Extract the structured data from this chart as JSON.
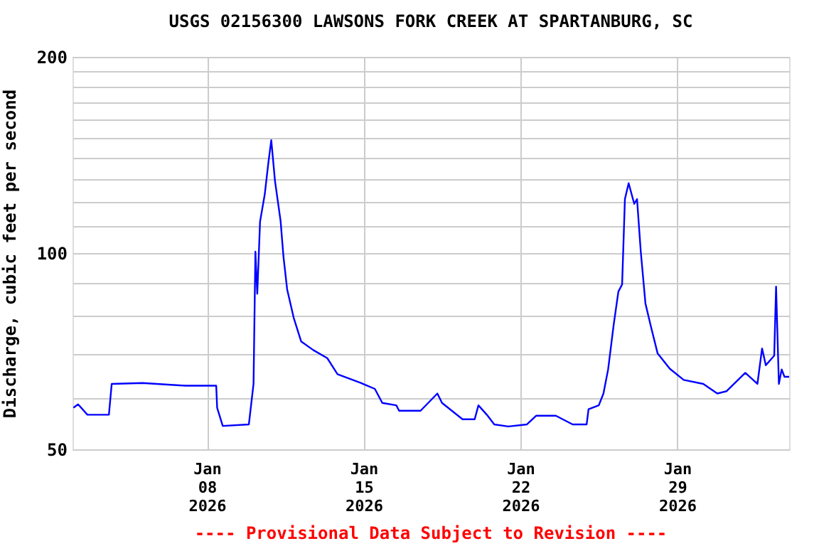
{
  "chart_data": {
    "type": "line",
    "title": "USGS 02156300 LAWSONS FORK CREEK AT SPARTANBURG, SC",
    "ylabel": "Discharge, cubic feet per second",
    "annotations": [
      "---- Provisional Data Subject to Revision ----"
    ],
    "x": [
      "2026-01-02T01:00",
      "2026-01-02T06:00",
      "2026-01-02T16:00",
      "2026-01-03T15:00",
      "2026-01-03T18:00",
      "2026-01-05T03:00",
      "2026-01-07T01:00",
      "2026-01-08T10:00",
      "2026-01-08T11:00",
      "2026-01-08T17:00",
      "2026-01-09T21:00",
      "2026-01-10T02:00",
      "2026-01-10T04:00",
      "2026-01-10T06:00",
      "2026-01-10T09:00",
      "2026-01-10T14:00",
      "2026-01-10T18:00",
      "2026-01-10T21:00",
      "2026-01-11T01:00",
      "2026-01-11T07:00",
      "2026-01-11T10:00",
      "2026-01-11T14:00",
      "2026-01-11T21:00",
      "2026-01-12T05:00",
      "2026-01-12T18:00",
      "2026-01-13T09:00",
      "2026-01-13T20:00",
      "2026-01-14T21:00",
      "2026-01-15T12:00",
      "2026-01-15T20:00",
      "2026-01-16T11:00",
      "2026-01-16T14:00",
      "2026-01-17T13:00",
      "2026-01-18T07:00",
      "2026-01-18T12:00",
      "2026-01-19T10:00",
      "2026-01-19T23:00",
      "2026-01-20T03:00",
      "2026-01-20T12:00",
      "2026-01-20T20:00",
      "2026-01-21T11:00",
      "2026-01-22T07:00",
      "2026-01-22T17:00",
      "2026-01-23T14:00",
      "2026-01-24T08:00",
      "2026-01-24T23:00",
      "2026-01-25T01:00",
      "2026-01-25T12:00",
      "2026-01-25T17:00",
      "2026-01-25T22:00",
      "2026-01-26T04:00",
      "2026-01-26T09:00",
      "2026-01-26T13:00",
      "2026-01-26T16:00",
      "2026-01-26T20:00",
      "2026-01-27T02:00",
      "2026-01-27T05:00",
      "2026-01-27T09:00",
      "2026-01-27T14:00",
      "2026-01-27T20:00",
      "2026-01-28T03:00",
      "2026-01-28T16:00",
      "2026-01-29T07:00",
      "2026-01-30T04:00",
      "2026-01-30T19:00",
      "2026-01-31T05:00",
      "2026-02-01T01:00",
      "2026-02-01T14:00",
      "2026-02-01T19:00",
      "2026-02-01T23:00",
      "2026-02-02T08:00",
      "2026-02-02T10:00",
      "2026-02-02T13:00",
      "2026-02-02T16:00",
      "2026-02-02T19:00",
      "2026-02-03T00:00"
    ],
    "series": [
      {
        "color": "#0000ff",
        "values": [
          57.9,
          58.6,
          56.5,
          56.5,
          63.0,
          63.2,
          62.6,
          62.6,
          57.9,
          54.3,
          54.6,
          63,
          100.5,
          86.6,
          111.8,
          123,
          138,
          149,
          129,
          112,
          99,
          88,
          79.6,
          73.2,
          71,
          69,
          65.2,
          63.2,
          61.9,
          58.9,
          58.4,
          57.3,
          57.3,
          60.9,
          58.9,
          55.6,
          55.6,
          58.4,
          56.5,
          54.6,
          54.2,
          54.6,
          56.3,
          56.3,
          54.6,
          54.6,
          57.6,
          58.4,
          60.9,
          66.3,
          77.7,
          87.3,
          89.5,
          121,
          128,
          119,
          121,
          100.5,
          83.7,
          77,
          70.2,
          66.5,
          63.9,
          63,
          60.9,
          61.4,
          65.5,
          63,
          71.4,
          67.3,
          69.6,
          88.8,
          63,
          66.3,
          64.6,
          64.6
        ]
      }
    ],
    "log": true,
    "grid": true,
    "legend": false,
    "line_style": "solid",
    "marker": "none",
    "xlim": [
      "2026-01-02",
      "2026-02-03"
    ],
    "xticks": [
      {
        "value": "2026-01-08",
        "label": "Jan\n08\n2026"
      },
      {
        "value": "2026-01-15",
        "label": "Jan\n15\n2026"
      },
      {
        "value": "2026-01-22",
        "label": "Jan\n22\n2026"
      },
      {
        "value": "2026-01-29",
        "label": "Jan\n29\n2026"
      }
    ],
    "ylim": [
      50,
      200
    ],
    "yticks": [
      50,
      {
        "value": 60,
        "label": null
      },
      {
        "value": 70,
        "label": null
      },
      {
        "value": 80,
        "label": null
      },
      {
        "value": 90,
        "label": null
      },
      100,
      {
        "value": 110,
        "label": null
      },
      {
        "value": 120,
        "label": null
      },
      {
        "value": 130,
        "label": null
      },
      {
        "value": 140,
        "label": null
      },
      {
        "value": 150,
        "label": null
      },
      {
        "value": 160,
        "label": null
      },
      {
        "value": 170,
        "label": null
      },
      {
        "value": 180,
        "label": null
      },
      {
        "value": 190,
        "label": null
      },
      200
    ]
  }
}
